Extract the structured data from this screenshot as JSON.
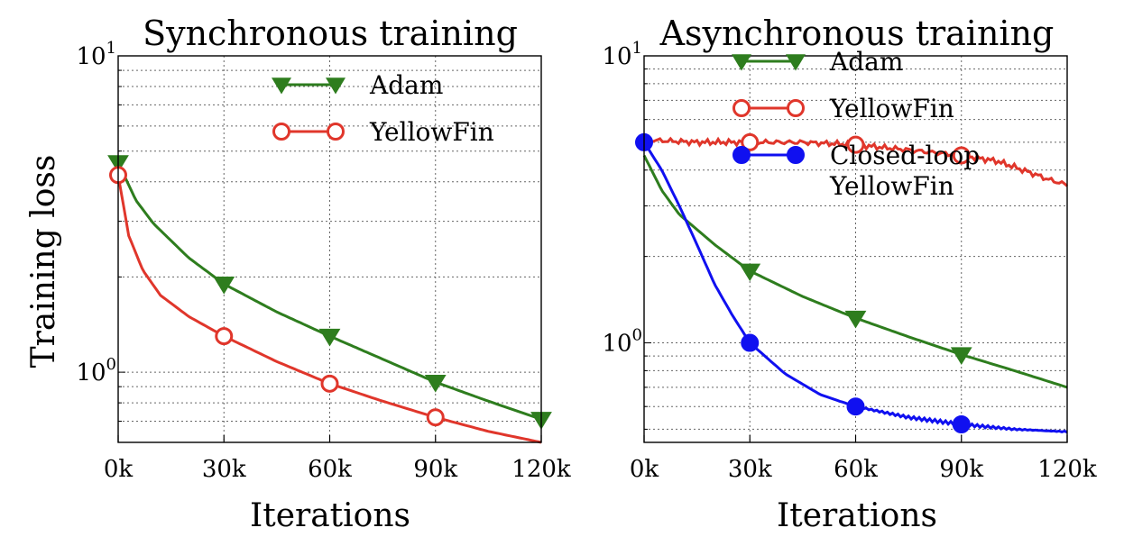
{
  "chart_data": [
    {
      "type": "line",
      "title": "Synchronous training",
      "xlabel": "Iterations",
      "ylabel": "Training loss",
      "yscale": "log",
      "xlim": [
        0,
        120000
      ],
      "ylim": [
        0.6,
        10
      ],
      "x_ticks": [
        0,
        30000,
        60000,
        90000,
        120000
      ],
      "x_tick_labels": [
        "0k",
        "30k",
        "60k",
        "90k",
        "120k"
      ],
      "y_ticks": [
        1,
        10
      ],
      "y_tick_labels": [
        {
          "base": "10",
          "exp": "0"
        },
        {
          "base": "10",
          "exp": "1"
        }
      ],
      "grid": true,
      "legend_position": "top-right",
      "series": [
        {
          "name": "Adam",
          "color": "#2e7d1e",
          "marker": "triangle-down",
          "fill": true,
          "x": [
            0,
            5000,
            10000,
            20000,
            30000,
            45000,
            60000,
            75000,
            90000,
            105000,
            120000
          ],
          "values": [
            4.6,
            3.5,
            2.95,
            2.3,
            1.9,
            1.55,
            1.3,
            1.1,
            0.93,
            0.81,
            0.71
          ],
          "markers_at": [
            0,
            30000,
            60000,
            90000,
            120000
          ]
        },
        {
          "name": "YellowFin",
          "color": "#e0362b",
          "marker": "circle",
          "fill": false,
          "x": [
            0,
            3000,
            7000,
            12000,
            20000,
            30000,
            45000,
            60000,
            75000,
            90000,
            105000,
            120000
          ],
          "values": [
            4.2,
            2.7,
            2.1,
            1.75,
            1.5,
            1.3,
            1.08,
            0.92,
            0.81,
            0.72,
            0.65,
            0.6
          ],
          "markers_at": [
            0,
            30000,
            60000,
            90000
          ]
        }
      ]
    },
    {
      "type": "line",
      "title": "Asynchronous training",
      "xlabel": "Iterations",
      "ylabel": "",
      "yscale": "log",
      "xlim": [
        0,
        120000
      ],
      "ylim": [
        0.45,
        10
      ],
      "x_ticks": [
        0,
        30000,
        60000,
        90000,
        120000
      ],
      "x_tick_labels": [
        "0k",
        "30k",
        "60k",
        "90k",
        "120k"
      ],
      "y_ticks": [
        1,
        10
      ],
      "y_tick_labels": [
        {
          "base": "10",
          "exp": "0"
        },
        {
          "base": "10",
          "exp": "1"
        }
      ],
      "grid": true,
      "legend_position": "top-right",
      "series": [
        {
          "name": "Adam",
          "color": "#2e7d1e",
          "marker": "triangle-down",
          "fill": true,
          "x": [
            0,
            5000,
            10000,
            20000,
            30000,
            45000,
            60000,
            75000,
            90000,
            105000,
            120000
          ],
          "values": [
            4.5,
            3.4,
            2.8,
            2.2,
            1.78,
            1.45,
            1.22,
            1.05,
            0.91,
            0.8,
            0.7
          ],
          "markers_at": [
            30000,
            60000,
            90000
          ]
        },
        {
          "name": "YellowFin",
          "color": "#e0362b",
          "marker": "circle",
          "fill": false,
          "x": [
            0,
            15000,
            30000,
            45000,
            60000,
            75000,
            90000,
            100000,
            105000,
            110000,
            115000,
            120000
          ],
          "values": [
            5.1,
            5.0,
            5.0,
            5.0,
            4.9,
            4.7,
            4.5,
            4.3,
            4.1,
            3.9,
            3.7,
            3.55
          ],
          "markers_at": [
            30000,
            60000,
            90000
          ]
        },
        {
          "name": "Closed-loop YellowFin",
          "color": "#1010f0",
          "marker": "circle",
          "fill": true,
          "x": [
            0,
            5000,
            10000,
            15000,
            20000,
            25000,
            30000,
            40000,
            50000,
            60000,
            75000,
            90000,
            105000,
            120000
          ],
          "values": [
            5.0,
            4.0,
            3.0,
            2.2,
            1.6,
            1.25,
            1.0,
            0.78,
            0.66,
            0.6,
            0.55,
            0.52,
            0.5,
            0.49
          ],
          "markers_at": [
            0,
            30000,
            60000,
            90000
          ]
        }
      ]
    }
  ]
}
